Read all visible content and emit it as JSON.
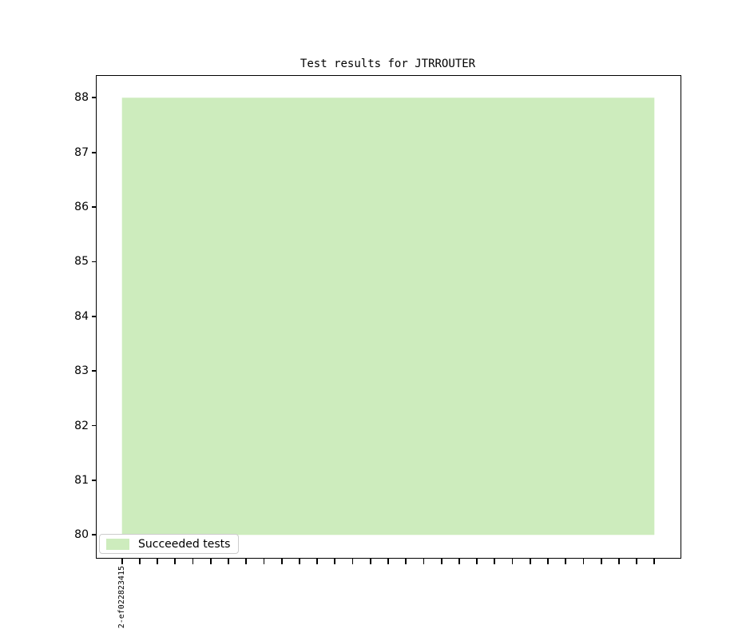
{
  "chart_data": {
    "type": "area",
    "title": "Test results for JTRROUTER",
    "xlabel": "",
    "ylabel": "",
    "ylim": [
      79.58,
      88.4
    ],
    "yticks": [
      80,
      81,
      82,
      83,
      84,
      85,
      86,
      87,
      88
    ],
    "baseline": 80,
    "grid": false,
    "x_tick_labels": [
      "2-ef022823415",
      "",
      "",
      "",
      "",
      "",
      "",
      "",
      "",
      "",
      "",
      "",
      "",
      "",
      "",
      "",
      "",
      "",
      "",
      "",
      "",
      "",
      "",
      "",
      "",
      "",
      "",
      "",
      "",
      "",
      ""
    ],
    "series": [
      {
        "name": "Succeeded tests",
        "color": "#cdecbd",
        "values": [
          88,
          88,
          88,
          88,
          88,
          88,
          88,
          88,
          88,
          88,
          88,
          88,
          88,
          88,
          88,
          88,
          88,
          88,
          88,
          88,
          88,
          88,
          88,
          88,
          88,
          88,
          88,
          88,
          88,
          88,
          88
        ]
      }
    ],
    "legend": {
      "position": "lower left",
      "entries": [
        {
          "label": "Succeeded tests",
          "color": "#cdecbd"
        }
      ]
    }
  }
}
